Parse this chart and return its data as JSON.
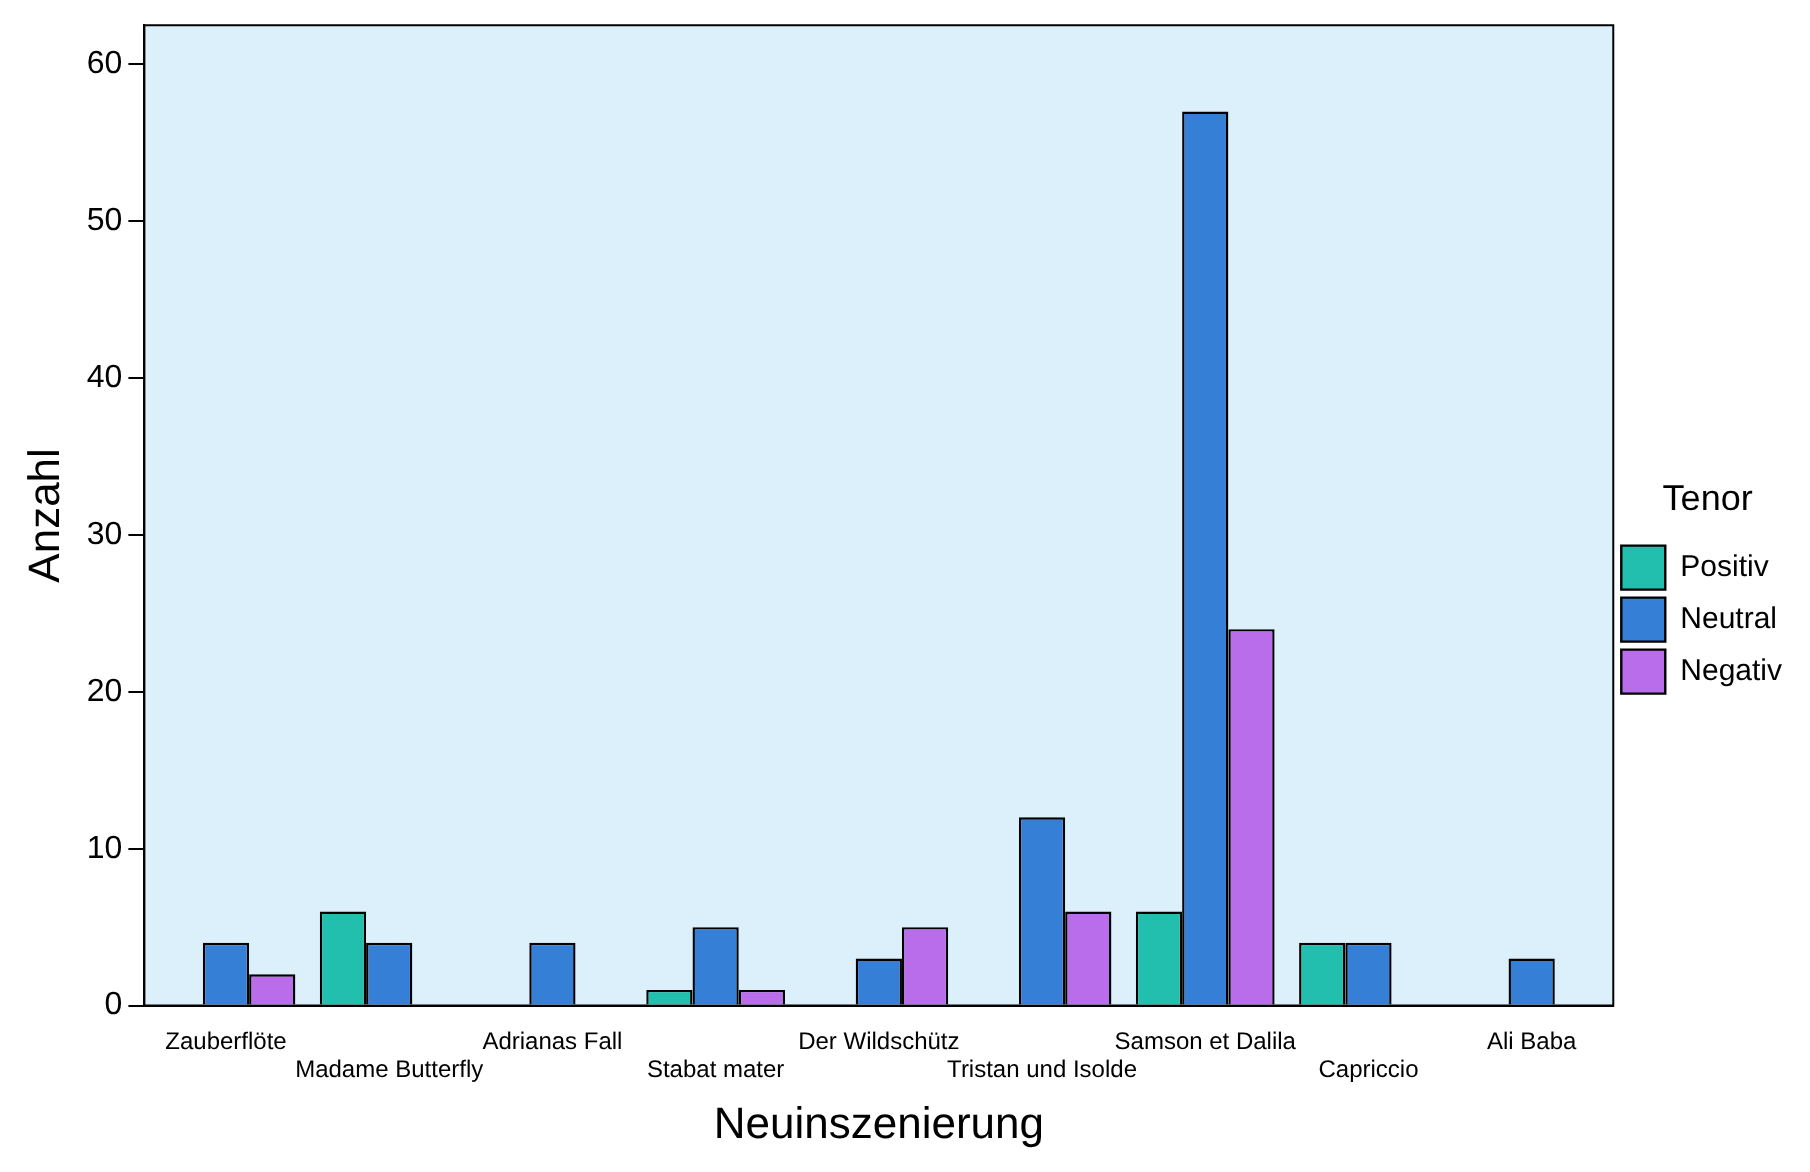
{
  "chart_data": {
    "type": "bar",
    "xlabel": "Neuinszenierung",
    "ylabel": "Anzahl",
    "legend_title": "Tenor",
    "legend": "right",
    "grid": false,
    "categories": [
      "Zauberflöte",
      "Madame Butterfly",
      "Adrianas Fall",
      "Stabat mater",
      "Der Wildschütz",
      "Tristan und Isolde",
      "Samson et Dalila",
      "Capriccio",
      "Ali Baba"
    ],
    "ylim": [
      0,
      62.5
    ],
    "yticks": [
      0,
      10,
      20,
      30,
      40,
      50,
      60
    ],
    "series": [
      {
        "name": "Positiv",
        "color": "#22bfae",
        "values": [
          null,
          6,
          null,
          1,
          null,
          null,
          6,
          4,
          null
        ]
      },
      {
        "name": "Neutral",
        "color": "#367fd6",
        "values": [
          4,
          4,
          4,
          5,
          3,
          12,
          57,
          4,
          3
        ]
      },
      {
        "name": "Negativ",
        "color": "#b96deb",
        "values": [
          2,
          null,
          null,
          1,
          5,
          6,
          24,
          null,
          null
        ]
      }
    ]
  }
}
